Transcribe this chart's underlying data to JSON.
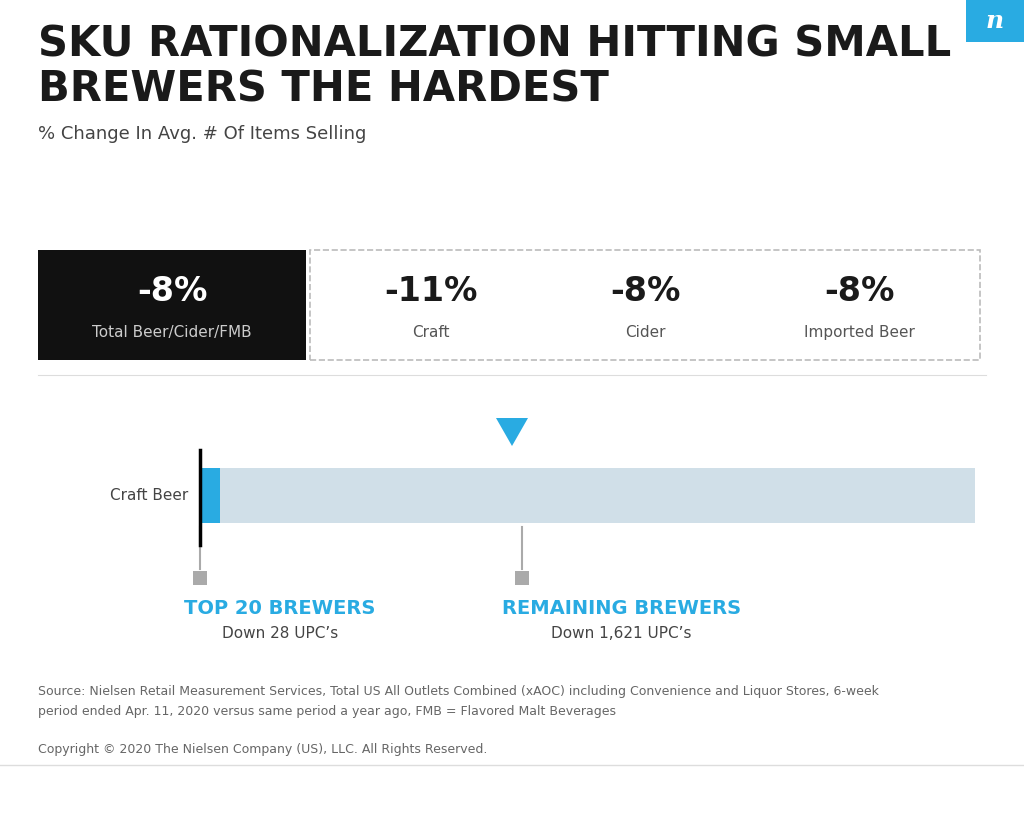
{
  "title_line1": "SKU RATIONALIZATION HITTING SMALL",
  "title_line2": "BREWERS THE HARDEST",
  "subtitle": "% Change In Avg. # Of Items Selling",
  "bg_color": "#ffffff",
  "title_color": "#1a1a1a",
  "subtitle_color": "#444444",
  "stats": [
    {
      "value": "-8%",
      "label": "Total Beer/Cider/FMB",
      "black_bg": true
    },
    {
      "value": "-11%",
      "label": "Craft",
      "black_bg": false
    },
    {
      "value": "-8%",
      "label": "Cider",
      "black_bg": false
    },
    {
      "value": "-8%",
      "label": "Imported Beer",
      "black_bg": false
    }
  ],
  "bar_bg_color": "#d0dfe8",
  "bar_blue_color": "#29abe2",
  "bar_black_color": "#111111",
  "bar_label": "Craft Beer",
  "top20_label": "TOP 20 BREWERS",
  "top20_sub": "Down 28 UPC’s",
  "remaining_label": "REMAINING BREWERS",
  "remaining_sub": "Down 1,621 UPC’s",
  "label_color": "#29abe2",
  "sub_label_color": "#444444",
  "arrow_color": "#29abe2",
  "nielsen_bg": "#29abe2",
  "nielsen_text": "n",
  "source_text": "Source: Nielsen Retail Measurement Services, Total US All Outlets Combined (xAOC) including Convenience and Liquor Stores, 6-week\nperiod ended Apr. 11, 2020 versus same period a year ago, FMB = Flavored Malt Beverages",
  "copyright_text": "Copyright © 2020 The Nielsen Company (US), LLC. All Rights Reserved.",
  "dashed_border_color": "#bbbbbb",
  "stat_value_fontsize": 24,
  "stat_label_fontsize": 11
}
